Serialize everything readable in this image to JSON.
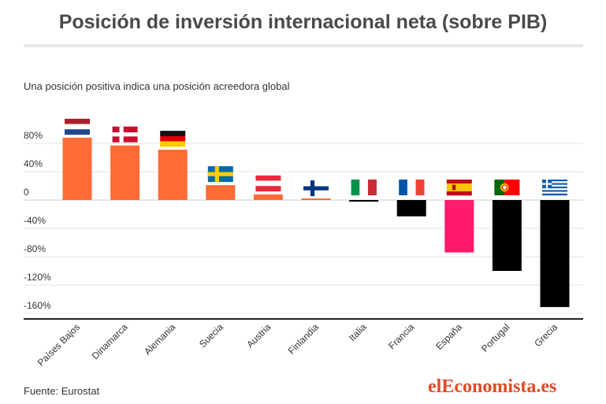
{
  "title": "Posición de inversión internacional neta (sobre PIB)",
  "subtitle": "Una posición positiva indica una posición acreedora global",
  "source": "Fuente: Eurostat",
  "brand": "elEconomista.es",
  "chart_data": {
    "type": "bar",
    "categories": [
      "Países Bajos",
      "Dinamarca",
      "Alemania",
      "Suecia",
      "Austria",
      "Finlandia",
      "Italia",
      "Francia",
      "España",
      "Portugal",
      "Grecia"
    ],
    "values": [
      88,
      77,
      71,
      21,
      8,
      1,
      -2,
      -23,
      -74,
      -100,
      -151
    ],
    "colors": [
      "#ff6b35",
      "#ff6b35",
      "#ff6b35",
      "#ff6b35",
      "#ff6b35",
      "#ff6b35",
      "#000000",
      "#000000",
      "#ff1a6c",
      "#000000",
      "#000000"
    ],
    "flags": [
      "netherlands-flag",
      "denmark-flag",
      "germany-flag",
      "sweden-flag",
      "austria-flag",
      "finland-flag",
      "italy-flag",
      "france-flag",
      "spain-flag",
      "portugal-flag",
      "greece-flag"
    ],
    "yticks": [
      80,
      40,
      0,
      -40,
      -80,
      -120,
      -160
    ],
    "yticklabels": [
      "80%",
      "40%",
      "0",
      "-40%",
      "-80%",
      "-120%",
      "-160%"
    ],
    "ylim": [
      -165,
      105
    ],
    "grid": true
  }
}
